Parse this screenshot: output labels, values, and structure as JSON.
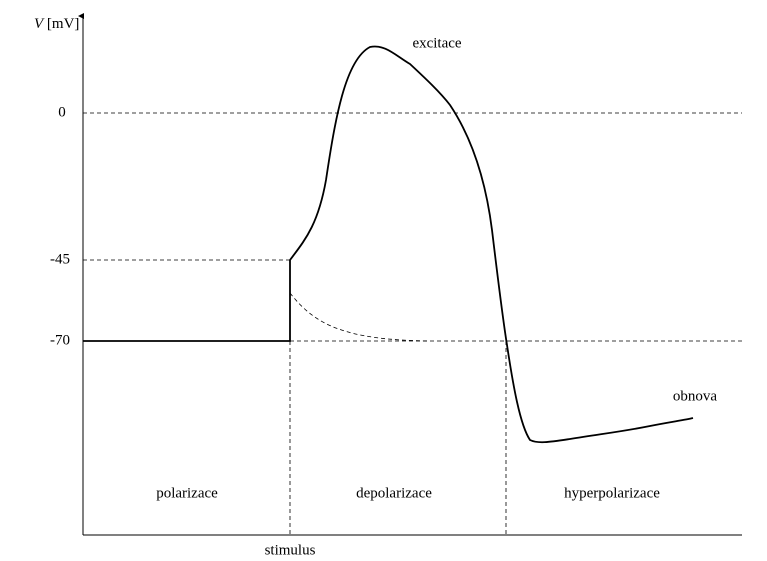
{
  "y_axis": {
    "symbol": "V",
    "unit": "[mV]",
    "ticks": [
      "0",
      "-45",
      "-70"
    ]
  },
  "annotations": {
    "peak": "excitace",
    "recovery": "obnova",
    "stimulus": "stimulus"
  },
  "phases": [
    "polarizace",
    "depolarizace",
    "hyperpolarizace"
  ]
}
